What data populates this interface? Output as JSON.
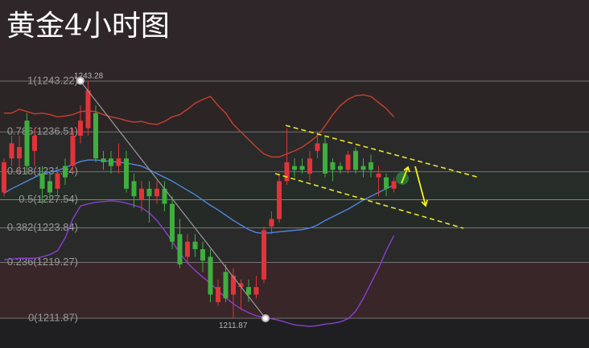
{
  "chart_data": {
    "type": "candlestick",
    "title": "黄金4小时图",
    "ylim": [
      1207.94,
      1253.95
    ],
    "yticks": [
      {
        "value": 1243.22,
        "label": "1(1243.22)"
      },
      {
        "value": 1236.51,
        "label": "0.786(1236.51)"
      },
      {
        "value": 1231.24,
        "label": "0.618(1231.24)"
      },
      {
        "value": 1227.54,
        "label": "0.5(1227.54)"
      },
      {
        "value": 1223.84,
        "label": "0.382(1223.84)"
      },
      {
        "value": 1219.27,
        "label": "0.236(1219.27)"
      },
      {
        "value": 1211.87,
        "label": "0(1211.87)"
      }
    ],
    "up_color": "#e0343a",
    "down_color": "#3fae3f",
    "open": [
      1228.5,
      1233,
      1233,
      1238,
      1234,
      1231,
      1230,
      1229,
      1232,
      1232,
      1236,
      1237,
      1239,
      1233,
      1233,
      1232,
      1233,
      1230,
      1227.5,
      1229,
      1228,
      1229,
      1227,
      1223,
      1220,
      1222,
      1221,
      1220,
      1214,
      1218,
      1215,
      1216,
      1216,
      1215,
      1217,
      1224,
      1225,
      1230,
      1232,
      1232,
      1231,
      1234,
      1235,
      1232.5,
      1232,
      1231.5,
      1234,
      1232,
      1232.5,
      1230.5,
      1230.5,
      1229
    ],
    "high": [
      1233,
      1236,
      1236,
      1239,
      1237,
      1232,
      1231,
      1232,
      1233,
      1237,
      1240,
      1243.28,
      1240,
      1234,
      1234,
      1235,
      1234,
      1231,
      1230,
      1230,
      1230,
      1230,
      1228,
      1225,
      1223,
      1223,
      1222,
      1221,
      1217,
      1219,
      1218.5,
      1217,
      1217,
      1217.5,
      1224,
      1226,
      1231,
      1237,
      1233,
      1233,
      1234,
      1236.5,
      1236,
      1233,
      1232.5,
      1234,
      1234.5,
      1233,
      1233.5,
      1232,
      1231,
      1230.5
    ],
    "low": [
      1228,
      1232,
      1231,
      1231,
      1232,
      1227,
      1227.5,
      1228,
      1229.5,
      1231,
      1235,
      1236,
      1232.5,
      1231.5,
      1231,
      1231,
      1228.5,
      1226.5,
      1226,
      1224.5,
      1227,
      1226,
      1221,
      1218.5,
      1219,
      1220,
      1218,
      1214,
      1213.5,
      1214,
      1211.87,
      1213,
      1214,
      1214.5,
      1216.5,
      1223,
      1224.5,
      1229.5,
      1230.5,
      1231,
      1230,
      1233,
      1230.5,
      1230,
      1231,
      1231,
      1231,
      1230.5,
      1230.5,
      1228,
      1228,
      1228.5
    ],
    "close": [
      1232.5,
      1235,
      1234.5,
      1232,
      1236,
      1229,
      1228.5,
      1231,
      1230.5,
      1236,
      1238,
      1242,
      1233,
      1232.5,
      1232,
      1233,
      1229,
      1228,
      1229,
      1228,
      1229,
      1227,
      1222,
      1219,
      1222,
      1221,
      1219.5,
      1215,
      1216,
      1214.5,
      1217.5,
      1216.5,
      1215,
      1216,
      1223.5,
      1225,
      1230,
      1232.5,
      1231.5,
      1231.5,
      1233,
      1235,
      1231,
      1231.5,
      1231.5,
      1233.5,
      1231.5,
      1231.5,
      1231.5,
      1231,
      1229,
      1230
    ],
    "series": [
      {
        "color": "#c8402e",
        "values": [
          1239,
          1239,
          1239.5,
          1239.2,
          1238.9,
          1239,
          1238.8,
          1238.5,
          1238.6,
          1238.8,
          1239.2,
          1239.3,
          1239.2,
          1238.8,
          1238.5,
          1238.3,
          1238,
          1237.8,
          1237.9,
          1237.6,
          1237.5,
          1237.9,
          1238.5,
          1238.8,
          1239.5,
          1240.3,
          1240.8,
          1241.2,
          1240,
          1239,
          1237.5,
          1236.5,
          1235.5,
          1234.5,
          1233.6,
          1233.2,
          1233.2,
          1233.6,
          1234,
          1234.5,
          1235.2,
          1236,
          1237.3,
          1238.8,
          1240,
          1240.8,
          1241.3,
          1241.4,
          1241.2,
          1240.4,
          1239.6,
          1238.5
        ]
      },
      {
        "color": "#4f86e0",
        "values": [
          1228.4,
          1229,
          1229.5,
          1230,
          1230.5,
          1231,
          1231.2,
          1231.4,
          1231.8,
          1232.2,
          1232.6,
          1232.8,
          1232.8,
          1232.7,
          1232.6,
          1232.5,
          1232.4,
          1232.2,
          1232,
          1231.5,
          1231,
          1230.5,
          1230,
          1229.4,
          1228.8,
          1228.2,
          1227.5,
          1226.8,
          1226.2,
          1225.5,
          1224.8,
          1224.2,
          1223.6,
          1223.2,
          1223.1,
          1223.2,
          1223.3,
          1223.4,
          1223.5,
          1223.6,
          1223.8,
          1224.2,
          1224.8,
          1225.3,
          1225.8,
          1226.3,
          1226.9,
          1227.5,
          1228,
          1228.5,
          1229,
          1229.5
        ]
      },
      {
        "color": "#8a3fd0",
        "values": [
          1219.6,
          1219.7,
          1219.8,
          1219.8,
          1219.8,
          1220,
          1220.3,
          1220.8,
          1222.5,
          1225,
          1226.7,
          1227,
          1227.2,
          1227.3,
          1227.4,
          1227.3,
          1227.1,
          1226.8,
          1226.5,
          1225.8,
          1224.8,
          1223.5,
          1222,
          1220.5,
          1219.2,
          1218.2,
          1217.3,
          1216.5,
          1215.5,
          1214.6,
          1213.8,
          1213.1,
          1212.6,
          1212.2,
          1212,
          1211.8,
          1211.6,
          1211.3,
          1211,
          1210.9,
          1210.8,
          1210.9,
          1211.1,
          1211.2,
          1211.4,
          1211.8,
          1212.8,
          1214.5,
          1216.5,
          1218.5,
          1220.8,
          1222.8
        ]
      }
    ],
    "annotations": [
      {
        "label": "1243.28",
        "value": 1243.28,
        "index": 11
      },
      {
        "label": "1211.87",
        "value": 1211.87,
        "index": 30
      }
    ]
  }
}
